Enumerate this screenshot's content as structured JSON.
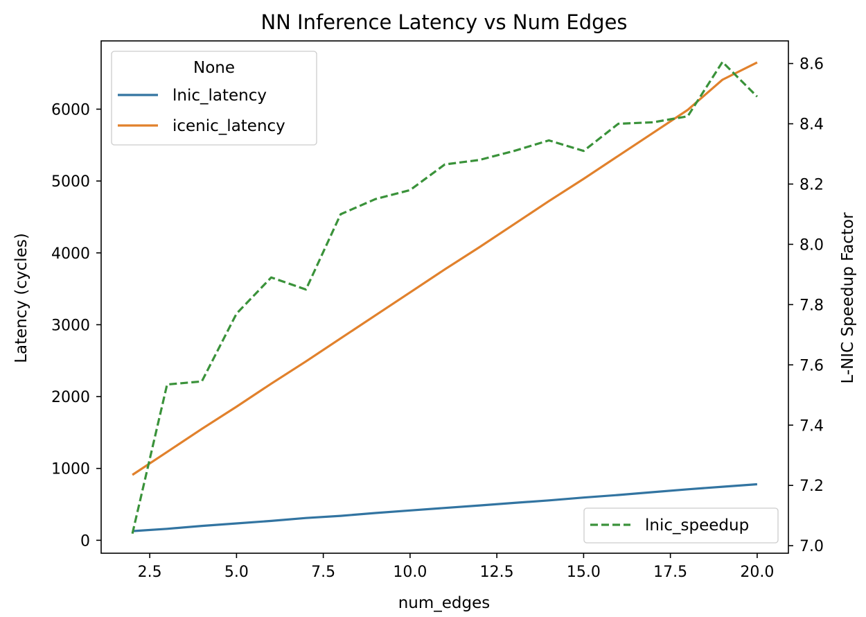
{
  "chart_data": {
    "type": "line",
    "title": "NN Inference Latency vs Num Edges",
    "xlabel": "num_edges",
    "ylabel": "Latency (cycles)",
    "y2label": "L-NIC Speedup Factor",
    "xlim": [
      1.1,
      20.9
    ],
    "ylim": [
      -180,
      6950
    ],
    "y2lim": [
      6.975,
      8.675
    ],
    "xticks": [
      2.5,
      5.0,
      7.5,
      10.0,
      12.5,
      15.0,
      17.5,
      20.0
    ],
    "xtick_labels": [
      "2.5",
      "5.0",
      "7.5",
      "10.0",
      "12.5",
      "15.0",
      "17.5",
      "20.0"
    ],
    "yticks": [
      0,
      1000,
      2000,
      3000,
      4000,
      5000,
      6000
    ],
    "ytick_labels": [
      "0",
      "1000",
      "2000",
      "3000",
      "4000",
      "5000",
      "6000"
    ],
    "y2ticks": [
      7.0,
      7.2,
      7.4,
      7.6,
      7.8,
      8.0,
      8.2,
      8.4,
      8.6
    ],
    "y2tick_labels": [
      "7.0",
      "7.2",
      "7.4",
      "7.6",
      "7.8",
      "8.0",
      "8.2",
      "8.4",
      "8.6"
    ],
    "x": [
      2,
      3,
      4,
      5,
      6,
      7,
      8,
      9,
      10,
      11,
      12,
      13,
      14,
      15,
      16,
      17,
      18,
      19,
      20
    ],
    "legend_left": {
      "title": "None",
      "placement": "upper-left",
      "entries": [
        "lnic_latency",
        "icenic_latency"
      ]
    },
    "legend_right": {
      "placement": "lower-right",
      "entries": [
        "lnic_speedup"
      ]
    },
    "series": [
      {
        "name": "lnic_latency",
        "axis": "left",
        "color": "#3274a1",
        "dashed": false,
        "values": [
          128,
          160,
          200,
          235,
          270,
          310,
          340,
          380,
          415,
          450,
          485,
          520,
          555,
          595,
          630,
          670,
          710,
          745,
          780
        ]
      },
      {
        "name": "icenic_latency",
        "axis": "left",
        "color": "#e1812c",
        "dashed": false,
        "values": [
          910,
          1230,
          1550,
          1860,
          2180,
          2490,
          2810,
          3130,
          3450,
          3770,
          4080,
          4400,
          4720,
          5030,
          5350,
          5670,
          5990,
          6410,
          6650
        ]
      },
      {
        "name": "lnic_speedup",
        "axis": "right",
        "color": "#3a923a",
        "dashed": true,
        "values": [
          7.04,
          7.535,
          7.545,
          7.77,
          7.89,
          7.85,
          8.1,
          8.15,
          8.18,
          8.265,
          8.28,
          8.31,
          8.345,
          8.31,
          8.4,
          8.405,
          8.425,
          8.605,
          8.49
        ]
      }
    ]
  }
}
